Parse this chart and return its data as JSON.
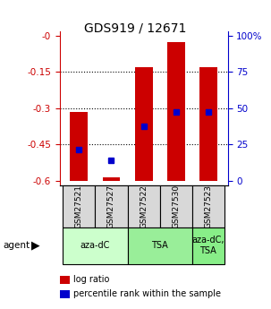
{
  "title": "GDS919 / 12671",
  "samples": [
    "GSM27521",
    "GSM27527",
    "GSM27522",
    "GSM27530",
    "GSM27523"
  ],
  "bar_tops": [
    -0.315,
    -0.585,
    -0.13,
    -0.025,
    -0.13
  ],
  "bar_bottom": -0.6,
  "percentile_values": [
    -0.47,
    -0.515,
    -0.375,
    -0.315,
    -0.315
  ],
  "ylim_min": -0.62,
  "ylim_max": 0.02,
  "yticks_left": [
    0.0,
    -0.15,
    -0.3,
    -0.45,
    -0.6
  ],
  "yticks_left_labels": [
    "-0",
    "-0.15",
    "-0.3",
    "-0.45",
    "-0.6"
  ],
  "yticks_right_pct": [
    "100%",
    "75",
    "50",
    "25",
    "0"
  ],
  "yticks_right_pos": [
    0.0,
    -0.15,
    -0.3,
    -0.45,
    -0.6
  ],
  "bar_color": "#cc0000",
  "blue_color": "#0000cc",
  "left_axis_color": "#cc0000",
  "right_axis_color": "#0000cc",
  "groups": [
    {
      "label": "aza-dC",
      "start": 0,
      "end": 2,
      "color": "#ccffcc"
    },
    {
      "label": "TSA",
      "start": 2,
      "end": 4,
      "color": "#99ee99"
    },
    {
      "label": "aza-dC,\nTSA",
      "start": 4,
      "end": 5,
      "color": "#88ee88"
    }
  ],
  "legend_items": [
    {
      "color": "#cc0000",
      "label": "log ratio"
    },
    {
      "color": "#0000cc",
      "label": "percentile rank within the sample"
    }
  ],
  "bar_width": 0.55,
  "background_color": "#ffffff"
}
